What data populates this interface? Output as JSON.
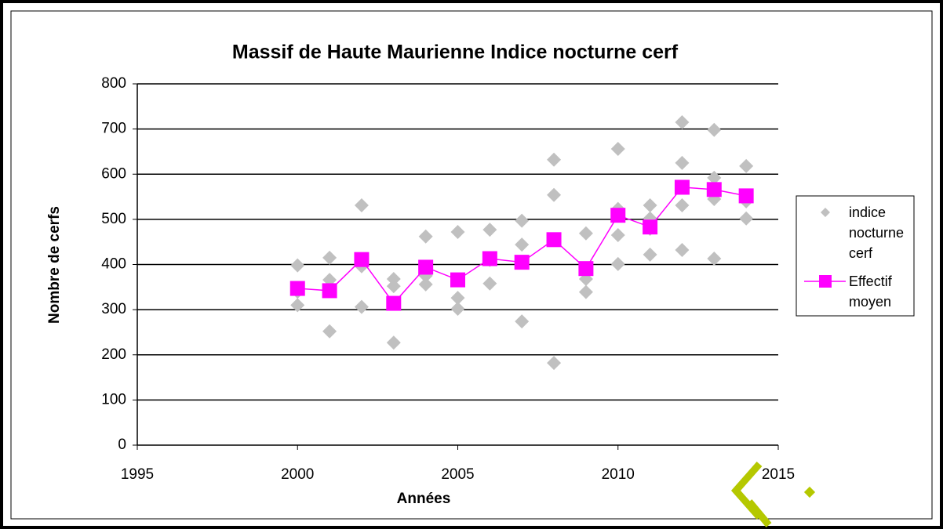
{
  "chart_data": {
    "type": "scatter",
    "title": "Massif de Haute Maurienne Indice nocturne cerf",
    "x_label": "Années",
    "y_label": "Nombre de cerfs",
    "xlim": [
      1995,
      2015
    ],
    "xticks": [
      1995,
      2000,
      2005,
      2010,
      2015
    ],
    "ylim": [
      0,
      800
    ],
    "yticks": [
      0,
      100,
      200,
      300,
      400,
      500,
      600,
      700,
      800
    ],
    "grid": true,
    "legend": "right",
    "series": [
      {
        "name": "indice nocturne cerf",
        "color": "#c0c0c0",
        "marker": "diamond",
        "line": false,
        "x": [
          2000,
          2000,
          2000,
          2001,
          2001,
          2001,
          2002,
          2002,
          2002,
          2003,
          2003,
          2003,
          2004,
          2004,
          2004,
          2005,
          2005,
          2005,
          2006,
          2006,
          2006,
          2007,
          2007,
          2007,
          2008,
          2008,
          2008,
          2009,
          2009,
          2009,
          2010,
          2010,
          2010,
          2010,
          2011,
          2011,
          2011,
          2011,
          2012,
          2012,
          2012,
          2012,
          2013,
          2013,
          2013,
          2013,
          2014,
          2014,
          2014
        ],
        "values": [
          398,
          340,
          310,
          415,
          366,
          252,
          531,
          396,
          306,
          368,
          352,
          227,
          462,
          375,
          356,
          472,
          326,
          302,
          477,
          410,
          358,
          497,
          444,
          274,
          632,
          554,
          182,
          469,
          368,
          339,
          656,
          523,
          465,
          401,
          531,
          502,
          479,
          422,
          715,
          625,
          531,
          432,
          698,
          592,
          545,
          413,
          618,
          540,
          502
        ]
      },
      {
        "name": "Effectif moyen",
        "color": "#ff00ff",
        "marker": "square",
        "line": true,
        "x": [
          2000,
          2001,
          2002,
          2003,
          2004,
          2005,
          2006,
          2007,
          2008,
          2009,
          2010,
          2011,
          2012,
          2013,
          2014
        ],
        "values": [
          347,
          342,
          411,
          314,
          394,
          366,
          413,
          405,
          455,
          391,
          509,
          483,
          571,
          566,
          552
        ]
      }
    ]
  }
}
